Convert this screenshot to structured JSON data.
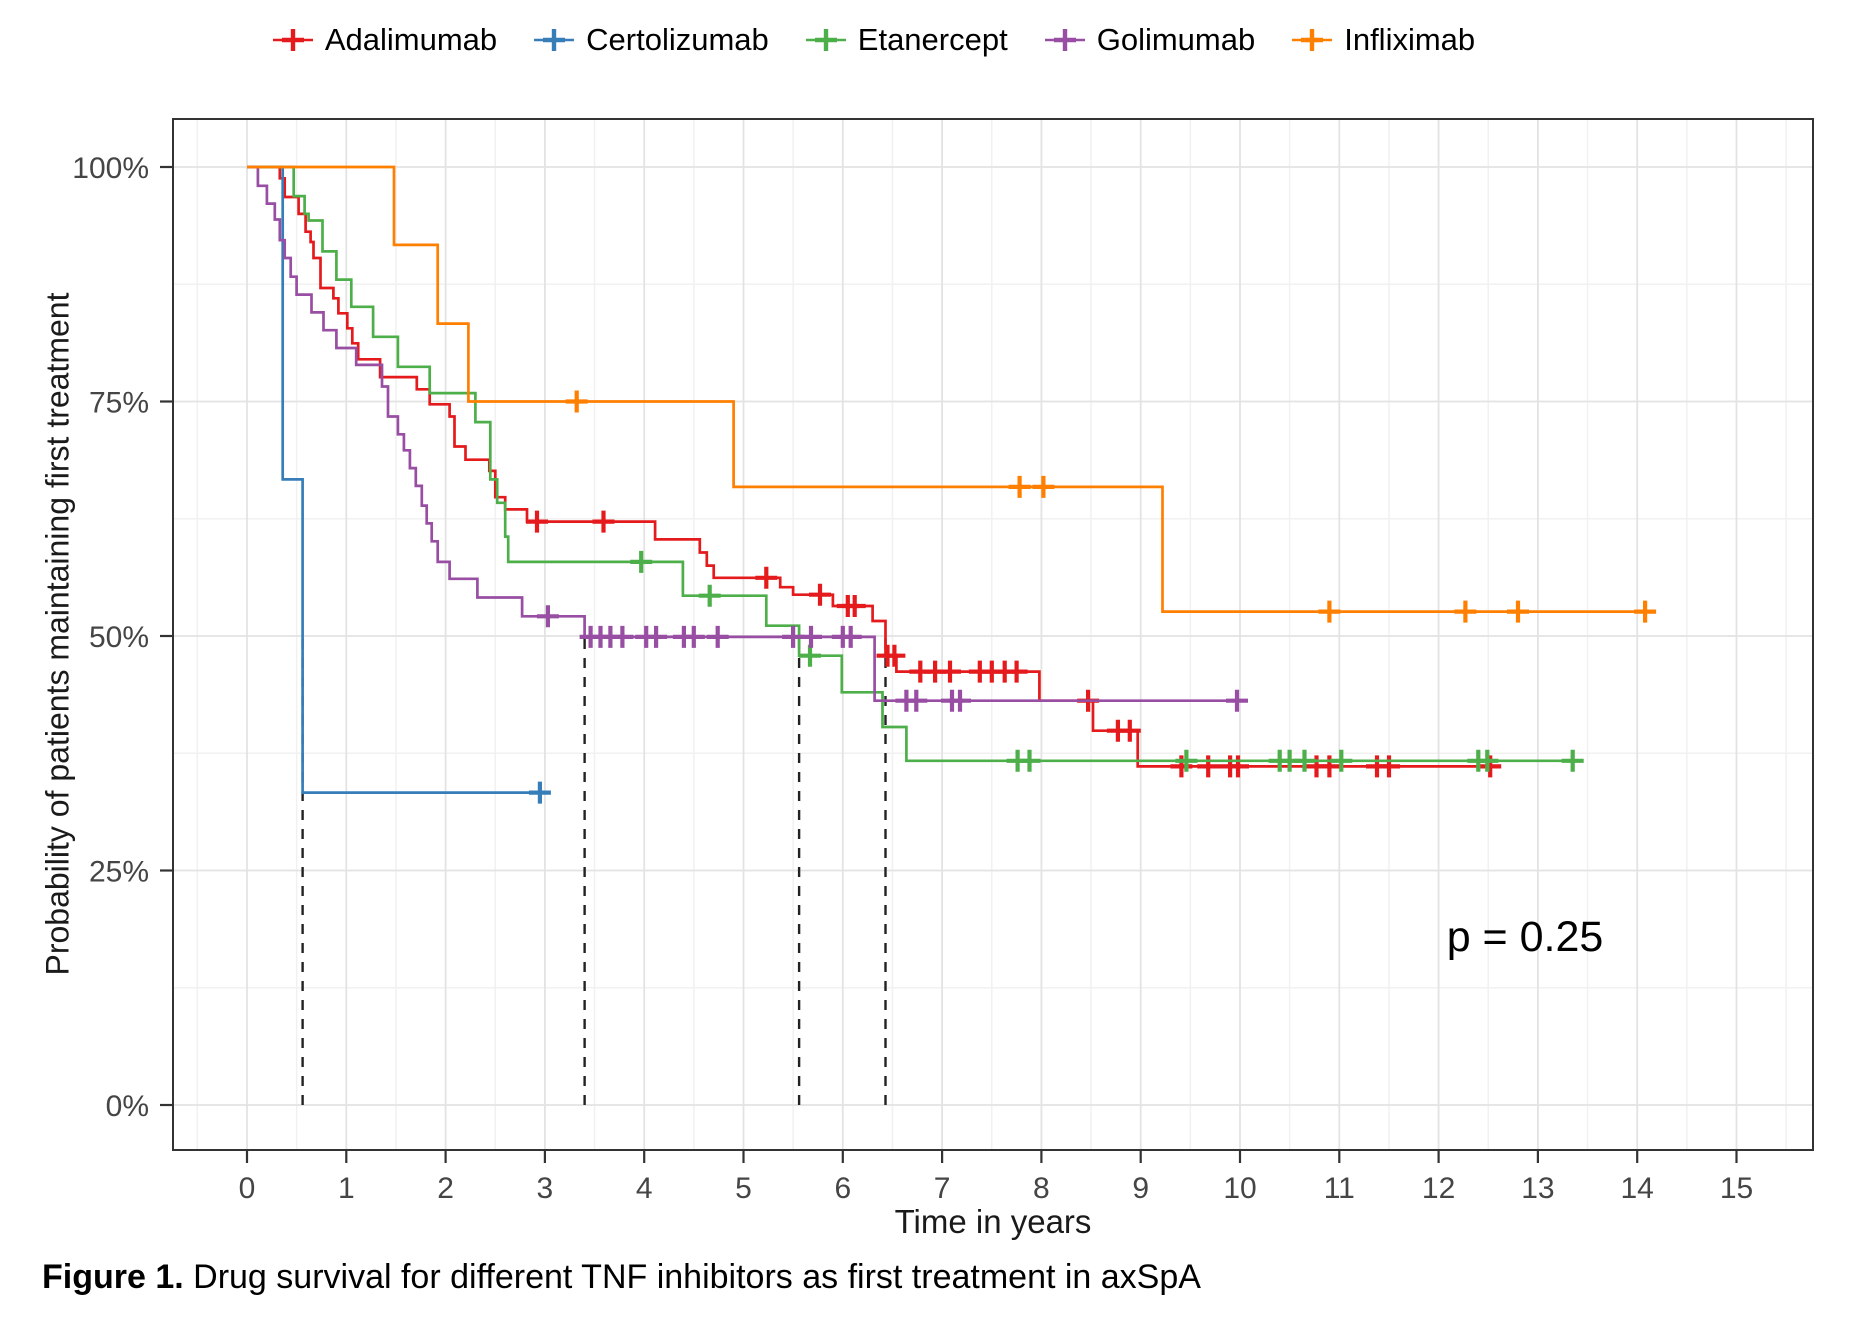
{
  "figure": {
    "caption": {
      "prefix": "Figure 1.",
      "rest": " Drug survival for different TNF inhibitors as first treatment in axSpA"
    }
  },
  "axes": {
    "x": {
      "label": "Time in years",
      "ticks": [
        "0",
        "1",
        "2",
        "3",
        "4",
        "5",
        "6",
        "7",
        "8",
        "9",
        "10",
        "11",
        "12",
        "13",
        "14",
        "15"
      ]
    },
    "y": {
      "label": "Probability of patients maintaining first treatment",
      "ticks": [
        {
          "value": 0,
          "label": "0%"
        },
        {
          "value": 25,
          "label": "25%"
        },
        {
          "value": 50,
          "label": "50%"
        },
        {
          "value": 75,
          "label": "75%"
        },
        {
          "value": 100,
          "label": "100%"
        }
      ]
    }
  },
  "chart_data": {
    "type": "line",
    "subtype": "kaplan-meier-step-curves",
    "title": "",
    "xlabel": "Time in years",
    "ylabel": "Probability of patients maintaining first treatment",
    "xlim": [
      0,
      15
    ],
    "ylim": [
      0,
      100
    ],
    "grid": true,
    "legend_position": "top",
    "p_value": "p = 0.25",
    "median_survival_dashed_x": [
      0.56,
      3.4,
      5.56,
      6.43
    ],
    "series": [
      {
        "name": "Adalimumab",
        "color": "#E41A1C",
        "end": 12.58,
        "steps": [
          [
            0,
            100
          ],
          [
            0.33,
            98.8
          ],
          [
            0.38,
            96.8
          ],
          [
            0.52,
            95
          ],
          [
            0.59,
            93.1
          ],
          [
            0.64,
            92
          ],
          [
            0.67,
            90.3
          ],
          [
            0.74,
            87.1
          ],
          [
            0.87,
            86
          ],
          [
            0.92,
            84.4
          ],
          [
            1.01,
            82.8
          ],
          [
            1.06,
            81.2
          ],
          [
            1.12,
            79.5
          ],
          [
            1.34,
            77.6
          ],
          [
            1.71,
            76.3
          ],
          [
            1.84,
            74.7
          ],
          [
            2.04,
            73.4
          ],
          [
            2.09,
            70.2
          ],
          [
            2.2,
            68.8
          ],
          [
            2.44,
            67.6
          ],
          [
            2.5,
            64.8
          ],
          [
            2.6,
            63.5
          ],
          [
            2.82,
            62.2
          ],
          [
            4.11,
            60.3
          ],
          [
            4.56,
            58.9
          ],
          [
            4.63,
            57.5
          ],
          [
            4.7,
            56.2
          ],
          [
            5.37,
            55.2
          ],
          [
            5.5,
            54.4
          ],
          [
            5.9,
            53.2
          ],
          [
            6.3,
            51.6
          ],
          [
            6.43,
            47.9
          ],
          [
            6.54,
            46.2
          ],
          [
            7.98,
            43.1
          ],
          [
            8.52,
            39.9
          ],
          [
            8.97,
            36.1
          ]
        ],
        "censors": [
          [
            2.92,
            62.2
          ],
          [
            3.59,
            62.2
          ],
          [
            5.23,
            56.2
          ],
          [
            5.77,
            54.4
          ],
          [
            6.05,
            53.2
          ],
          [
            6.12,
            53.2
          ],
          [
            6.45,
            47.9
          ],
          [
            6.52,
            47.9
          ],
          [
            6.78,
            46.2
          ],
          [
            6.93,
            46.2
          ],
          [
            7.08,
            46.2
          ],
          [
            7.38,
            46.2
          ],
          [
            7.5,
            46.2
          ],
          [
            7.63,
            46.2
          ],
          [
            7.75,
            46.2
          ],
          [
            8.47,
            43.1
          ],
          [
            8.77,
            39.9
          ],
          [
            8.89,
            39.9
          ],
          [
            9.41,
            36.1
          ],
          [
            9.68,
            36.1
          ],
          [
            9.9,
            36.1
          ],
          [
            9.98,
            36.1
          ],
          [
            10.77,
            36.1
          ],
          [
            10.9,
            36.1
          ],
          [
            11.38,
            36.1
          ],
          [
            11.5,
            36.1
          ],
          [
            12.52,
            36.1
          ]
        ]
      },
      {
        "name": "Certolizumab",
        "color": "#377EB8",
        "end": 2.95,
        "steps": [
          [
            0,
            100
          ],
          [
            0.36,
            66.7
          ],
          [
            0.56,
            33.3
          ]
        ],
        "censors": [
          [
            2.95,
            33.3
          ]
        ]
      },
      {
        "name": "Etanercept",
        "color": "#4DAF4A",
        "end": 13.42,
        "steps": [
          [
            0,
            100
          ],
          [
            0.47,
            96.9
          ],
          [
            0.58,
            95
          ],
          [
            0.62,
            94.3
          ],
          [
            0.76,
            91
          ],
          [
            0.9,
            88
          ],
          [
            1.05,
            85.1
          ],
          [
            1.27,
            81.9
          ],
          [
            1.52,
            78.7
          ],
          [
            1.84,
            75.9
          ],
          [
            2.3,
            72.8
          ],
          [
            2.45,
            66.7
          ],
          [
            2.52,
            64.2
          ],
          [
            2.6,
            60.6
          ],
          [
            2.63,
            57.9
          ],
          [
            4.39,
            54.3
          ],
          [
            5.23,
            51.1
          ],
          [
            5.56,
            47.9
          ],
          [
            5.99,
            44
          ],
          [
            6.4,
            40.3
          ],
          [
            6.64,
            36.7
          ]
        ],
        "censors": [
          [
            3.97,
            57.9
          ],
          [
            4.66,
            54.3
          ],
          [
            5.67,
            47.9
          ],
          [
            7.76,
            36.7
          ],
          [
            7.88,
            36.7
          ],
          [
            9.46,
            36.7
          ],
          [
            10.4,
            36.7
          ],
          [
            10.5,
            36.7
          ],
          [
            10.65,
            36.7
          ],
          [
            11.02,
            36.7
          ],
          [
            12.4,
            36.7
          ],
          [
            12.49,
            36.7
          ],
          [
            13.35,
            36.7
          ]
        ]
      },
      {
        "name": "Golimumab",
        "color": "#984EA3",
        "end": 10.0,
        "steps": [
          [
            0,
            100
          ],
          [
            0.11,
            98
          ],
          [
            0.2,
            96.1
          ],
          [
            0.28,
            94.4
          ],
          [
            0.33,
            92.2
          ],
          [
            0.38,
            90.3
          ],
          [
            0.44,
            88.3
          ],
          [
            0.5,
            86.4
          ],
          [
            0.65,
            84.5
          ],
          [
            0.77,
            82.6
          ],
          [
            0.9,
            80.7
          ],
          [
            1.1,
            78.9
          ],
          [
            1.36,
            76.6
          ],
          [
            1.42,
            73.4
          ],
          [
            1.52,
            71.5
          ],
          [
            1.58,
            69.8
          ],
          [
            1.64,
            67.9
          ],
          [
            1.7,
            66
          ],
          [
            1.76,
            63.9
          ],
          [
            1.81,
            62
          ],
          [
            1.86,
            60.1
          ],
          [
            1.92,
            57.9
          ],
          [
            2.04,
            56.1
          ],
          [
            2.32,
            54.1
          ],
          [
            2.77,
            52.1
          ],
          [
            3.4,
            49.9
          ],
          [
            6.32,
            43.1
          ]
        ],
        "censors": [
          [
            3.03,
            52.1
          ],
          [
            3.46,
            49.9
          ],
          [
            3.56,
            49.9
          ],
          [
            3.66,
            49.9
          ],
          [
            3.78,
            49.9
          ],
          [
            4.02,
            49.9
          ],
          [
            4.12,
            49.9
          ],
          [
            4.4,
            49.9
          ],
          [
            4.5,
            49.9
          ],
          [
            4.74,
            49.9
          ],
          [
            5.5,
            49.9
          ],
          [
            5.68,
            49.9
          ],
          [
            6.0,
            49.9
          ],
          [
            6.08,
            49.9
          ],
          [
            6.64,
            43.1
          ],
          [
            6.74,
            43.1
          ],
          [
            7.1,
            43.1
          ],
          [
            7.18,
            43.1
          ],
          [
            9.97,
            43.1
          ]
        ]
      },
      {
        "name": "Infliximab",
        "color": "#FF7F00",
        "end": 14.16,
        "steps": [
          [
            0,
            100
          ],
          [
            1.48,
            91.7
          ],
          [
            1.92,
            83.3
          ],
          [
            2.23,
            75
          ],
          [
            4.9,
            65.9
          ],
          [
            9.22,
            52.6
          ]
        ],
        "censors": [
          [
            3.32,
            75
          ],
          [
            7.78,
            65.9
          ],
          [
            8.02,
            65.9
          ],
          [
            10.9,
            52.6
          ],
          [
            12.27,
            52.6
          ],
          [
            12.8,
            52.6
          ],
          [
            14.08,
            52.6
          ]
        ]
      }
    ]
  },
  "styles": {
    "background": "#ffffff",
    "grid_major": "#e3e3e3",
    "grid_minor": "#f1f1f1",
    "panel_border": "#333333",
    "tick_color": "#333333",
    "tick_label_color": "#454545",
    "median_line_color": "#222222"
  }
}
